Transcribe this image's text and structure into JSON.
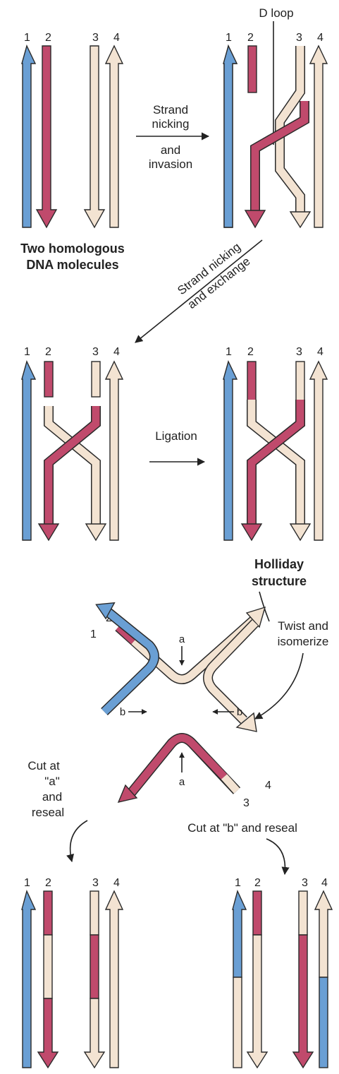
{
  "strand_numbers": [
    "1",
    "2",
    "3",
    "4"
  ],
  "labels": {
    "d_loop": "D loop",
    "step1_line1": "Strand",
    "step1_line2": "nicking",
    "step1_line3": "and",
    "step1_line4": "invasion",
    "molecules_line1": "Two homologous",
    "molecules_line2": "DNA molecules",
    "step2_line1": "Strand nicking",
    "step2_line2": "and exchange",
    "ligation": "Ligation",
    "holliday_line1": "Holliday",
    "holliday_line2": "structure",
    "twist_line1": "Twist and",
    "twist_line2": "isomerize",
    "site_a": "a",
    "site_b": "b",
    "cut_a_line1": "Cut at",
    "cut_a_line2": "\"a\"",
    "cut_a_line3": "and",
    "cut_a_line4": "reseal",
    "cut_b": "Cut at \"b\" and reseal"
  },
  "colors": {
    "strand_1": "#6a9fd4",
    "strand_2": "#c04a6c",
    "strand_3": "#f3e3d2",
    "strand_4": "#f3e3d2",
    "outline": "#2a2a2a"
  }
}
